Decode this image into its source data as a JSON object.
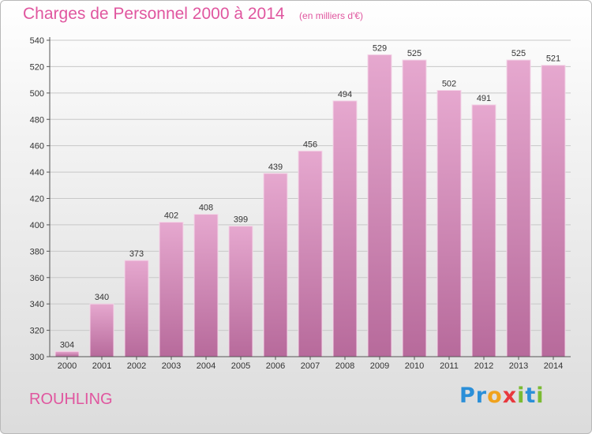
{
  "header": {
    "title": "Charges de Personnel 2000 à 2014",
    "subtitle": "(en milliers d'€)"
  },
  "footer": {
    "commune": "ROUHLING",
    "brand": [
      "P",
      "r",
      "o",
      "x",
      "i",
      "t",
      "i"
    ],
    "brand_colors": [
      "#2b8fd8",
      "#2b8fd8",
      "#f0a21d",
      "#e8383d",
      "#7bbb33",
      "#2b8fd8",
      "#7bbb33"
    ]
  },
  "chart_data": {
    "type": "bar",
    "title": "Charges de Personnel 2000 à 2014",
    "subtitle": "(en milliers d'€)",
    "categories": [
      "2000",
      "2001",
      "2002",
      "2003",
      "2004",
      "2005",
      "2006",
      "2007",
      "2008",
      "2009",
      "2010",
      "2011",
      "2012",
      "2013",
      "2014"
    ],
    "values": [
      304,
      340,
      373,
      402,
      408,
      399,
      439,
      456,
      494,
      529,
      525,
      502,
      491,
      525,
      521
    ],
    "ylim": [
      300,
      540
    ],
    "yticks": [
      300,
      320,
      340,
      360,
      380,
      400,
      420,
      440,
      460,
      480,
      500,
      520,
      540
    ],
    "grid": true,
    "bar_color": "#d27fb1"
  }
}
